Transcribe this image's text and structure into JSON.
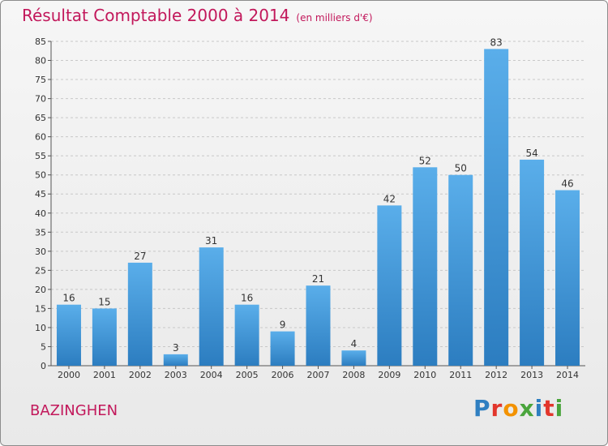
{
  "title": "Résultat Comptable 2000 à 2014",
  "subtitle": "(en milliers d'€)",
  "commune": "BAZINGHEN",
  "logo": {
    "text": "Proxiti",
    "colors": [
      "#2f7fc1",
      "#e2362c",
      "#f39200",
      "#4aa53c",
      "#2f7fc1",
      "#e2362c",
      "#4aa53c"
    ]
  },
  "colors": {
    "accent": "#c2185b",
    "bar_top": "#5aaeea",
    "bar_bottom": "#2c7dc0",
    "grid": "#c8c8c8"
  },
  "chart_data": {
    "type": "bar",
    "categories": [
      "2000",
      "2001",
      "2002",
      "2003",
      "2004",
      "2005",
      "2006",
      "2007",
      "2008",
      "2009",
      "2010",
      "2011",
      "2012",
      "2013",
      "2014"
    ],
    "values": [
      16,
      15,
      27,
      3,
      31,
      16,
      9,
      21,
      4,
      42,
      52,
      50,
      83,
      54,
      46
    ],
    "ylim": [
      0,
      85
    ],
    "yticks": [
      0,
      5,
      10,
      15,
      20,
      25,
      30,
      35,
      40,
      45,
      50,
      55,
      60,
      65,
      70,
      75,
      80,
      85
    ],
    "grid": true
  }
}
